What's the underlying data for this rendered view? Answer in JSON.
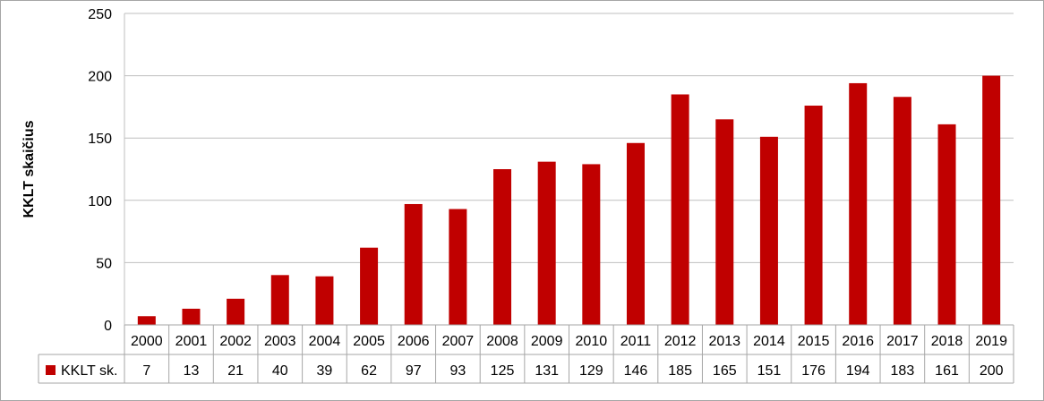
{
  "chart_data": {
    "type": "bar",
    "categories": [
      "2000",
      "2001",
      "2002",
      "2003",
      "2004",
      "2005",
      "2006",
      "2007",
      "2008",
      "2009",
      "2010",
      "2011",
      "2012",
      "2013",
      "2014",
      "2015",
      "2016",
      "2017",
      "2018",
      "2019"
    ],
    "series": [
      {
        "name": "KKLT sk.",
        "values": [
          7,
          13,
          21,
          40,
          39,
          62,
          97,
          93,
          125,
          131,
          129,
          146,
          185,
          165,
          151,
          176,
          194,
          183,
          161,
          200
        ],
        "color": "#c00000"
      }
    ],
    "title": "",
    "xlabel": "",
    "ylabel": "KKLT skaičius",
    "ylim": [
      0,
      250
    ],
    "yticks": [
      "0",
      "50",
      "100",
      "150",
      "200",
      "250"
    ],
    "grid": true,
    "legend": "data-table-left"
  }
}
